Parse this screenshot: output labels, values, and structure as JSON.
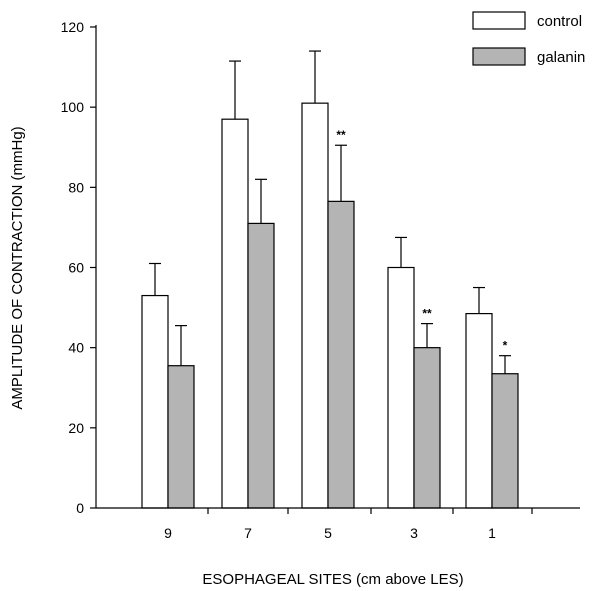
{
  "chart_data": {
    "type": "bar",
    "title": "",
    "xlabel": "ESOPHAGEAL SITES (cm  above  LES)",
    "ylabel": "AMPLITUDE OF CONTRACTION (mmHg)",
    "categories": [
      "9",
      "7",
      "5",
      "3",
      "1"
    ],
    "ylim": [
      0,
      120
    ],
    "yticks": [
      0,
      20,
      40,
      60,
      80,
      100,
      120
    ],
    "grid": false,
    "legend_position": "top-right",
    "error_bars": "upper",
    "series": [
      {
        "name": "control",
        "color": "#ffffff",
        "values": [
          53,
          97,
          101,
          60,
          48.5
        ],
        "errors": [
          8,
          14.5,
          13,
          7.5,
          6.5
        ],
        "significance": [
          "",
          "",
          "",
          "",
          ""
        ]
      },
      {
        "name": "galanin",
        "color": "#b4b4b4",
        "values": [
          35.5,
          71,
          76.5,
          40,
          33.5
        ],
        "errors": [
          10,
          11,
          14,
          6,
          4.5
        ],
        "significance": [
          "",
          "",
          "**",
          "**",
          "*"
        ]
      }
    ]
  }
}
